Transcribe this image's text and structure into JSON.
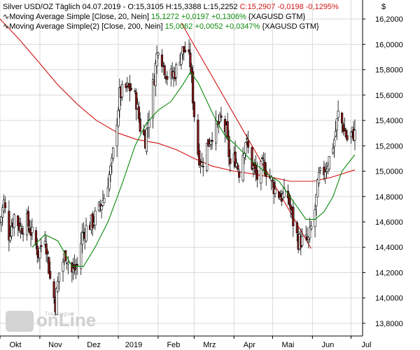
{
  "colors": {
    "background": "#ffffff",
    "grid": "#d9d9d9",
    "candle_up": "#ffffff",
    "candle_down": "#8b1a1a",
    "candle_wick": "#000000",
    "ma20": "#0a8a0a",
    "ma200": "#d21414",
    "trendline": "#d21414",
    "positive": "#0a8a0a",
    "negative": "#d21414",
    "watermark": "#cfcfcf"
  },
  "watermark": {
    "brand": "onLine",
    "sub": "Tradesignal"
  },
  "legend": {
    "line1": {
      "prefix": "Silver USD/OZ Täglich  04.07.2019 - O:15,3105 H:15,3388 L:15,2252 ",
      "change": "C:15,2907 -0,0198 -0,1295%"
    },
    "line2": {
      "icon": "∿",
      "prefix": "Moving Average Simple [Close, 20, Nein] ",
      "change": "15,1272 +0,0197 +0,1306%",
      "suffix": " {XAGUSD GTM}"
    },
    "line3": {
      "icon": "∿",
      "prefix": "Moving Average Simple(2) [Close, 200, Nein] ",
      "change": "15,0062 +0,0052 +0,0347%",
      "suffix": " {XAGUSD GTM}"
    }
  },
  "chart_data": {
    "type": "candlestick",
    "currency_label": "$",
    "ylim": [
      13.7,
      16.35
    ],
    "y_ticks": [
      13.8,
      14.0,
      14.2,
      14.4,
      14.6,
      14.8,
      15.0,
      15.2,
      15.4,
      15.6,
      15.8,
      16.0,
      16.2
    ],
    "y_tick_labels": [
      "13,8000",
      "14,0000",
      "14,2000",
      "14,4000",
      "14,6000",
      "14,8000",
      "15,0000",
      "15,2000",
      "15,4000",
      "15,6000",
      "15,8000",
      "16,0000",
      "16,2000"
    ],
    "x_start": "2018-10-01",
    "x_end": "2019-07-10",
    "x_ticks": [
      {
        "label": "Okt",
        "date": "2018-10-01"
      },
      {
        "label": "Nov",
        "date": "2018-11-01"
      },
      {
        "label": "Dez",
        "date": "2018-12-01"
      },
      {
        "label": "2019",
        "date": "2019-01-01"
      },
      {
        "label": "Feb",
        "date": "2019-02-01"
      },
      {
        "label": "Mrz",
        "date": "2019-03-01"
      },
      {
        "label": "Apr",
        "date": "2019-04-01"
      },
      {
        "label": "Mai",
        "date": "2019-05-01"
      },
      {
        "label": "Jun",
        "date": "2019-06-01"
      },
      {
        "label": "Jul",
        "date": "2019-07-01"
      }
    ],
    "close_anchors": [
      [
        "2018-10-01",
        14.6
      ],
      [
        "2018-10-04",
        14.75
      ],
      [
        "2018-10-08",
        14.5
      ],
      [
        "2018-10-12",
        14.65
      ],
      [
        "2018-10-17",
        14.55
      ],
      [
        "2018-10-22",
        14.6
      ],
      [
        "2018-10-26",
        14.5
      ],
      [
        "2018-10-31",
        14.35
      ],
      [
        "2018-11-05",
        14.5
      ],
      [
        "2018-11-09",
        14.15
      ],
      [
        "2018-11-13",
        13.95
      ],
      [
        "2018-11-16",
        14.2
      ],
      [
        "2018-11-21",
        14.35
      ],
      [
        "2018-11-26",
        14.2
      ],
      [
        "2018-11-30",
        14.25
      ],
      [
        "2018-12-04",
        14.5
      ],
      [
        "2018-12-07",
        14.55
      ],
      [
        "2018-12-12",
        14.6
      ],
      [
        "2018-12-17",
        14.7
      ],
      [
        "2018-12-21",
        14.8
      ],
      [
        "2018-12-27",
        15.05
      ],
      [
        "2019-01-02",
        15.6
      ],
      [
        "2019-01-07",
        15.65
      ],
      [
        "2019-01-11",
        15.65
      ],
      [
        "2019-01-15",
        15.55
      ],
      [
        "2019-01-18",
        15.35
      ],
      [
        "2019-01-22",
        15.25
      ],
      [
        "2019-01-25",
        15.45
      ],
      [
        "2019-01-29",
        15.75
      ],
      [
        "2019-02-01",
        16.0
      ],
      [
        "2019-02-05",
        15.85
      ],
      [
        "2019-02-08",
        15.75
      ],
      [
        "2019-02-12",
        15.75
      ],
      [
        "2019-02-15",
        15.8
      ],
      [
        "2019-02-19",
        15.95
      ],
      [
        "2019-02-22",
        15.95
      ],
      [
        "2019-02-26",
        15.85
      ],
      [
        "2019-03-01",
        15.45
      ],
      [
        "2019-03-04",
        15.15
      ],
      [
        "2019-03-07",
        15.05
      ],
      [
        "2019-03-11",
        15.2
      ],
      [
        "2019-03-15",
        15.3
      ],
      [
        "2019-03-19",
        15.35
      ],
      [
        "2019-03-22",
        15.4
      ],
      [
        "2019-03-26",
        15.3
      ],
      [
        "2019-03-29",
        15.05
      ],
      [
        "2019-04-02",
        15.1
      ],
      [
        "2019-04-05",
        15.0
      ],
      [
        "2019-04-10",
        15.25
      ],
      [
        "2019-04-15",
        15.05
      ],
      [
        "2019-04-19",
        14.95
      ],
      [
        "2019-04-24",
        15.05
      ],
      [
        "2019-04-29",
        14.95
      ],
      [
        "2019-05-03",
        14.85
      ],
      [
        "2019-05-08",
        14.8
      ],
      [
        "2019-05-13",
        14.8
      ],
      [
        "2019-05-17",
        14.6
      ],
      [
        "2019-05-21",
        14.45
      ],
      [
        "2019-05-24",
        14.45
      ],
      [
        "2019-05-29",
        14.45
      ],
      [
        "2019-06-03",
        14.7
      ],
      [
        "2019-06-06",
        14.95
      ],
      [
        "2019-06-10",
        15.0
      ],
      [
        "2019-06-14",
        15.1
      ],
      [
        "2019-06-18",
        15.25
      ],
      [
        "2019-06-21",
        15.45
      ],
      [
        "2019-06-25",
        15.35
      ],
      [
        "2019-06-28",
        15.25
      ],
      [
        "2019-07-02",
        15.3
      ],
      [
        "2019-07-04",
        15.29
      ]
    ],
    "ma20_points": [
      [
        "2018-10-26",
        14.4
      ],
      [
        "2018-11-05",
        14.5
      ],
      [
        "2018-11-15",
        14.45
      ],
      [
        "2018-11-26",
        14.25
      ],
      [
        "2018-12-05",
        14.25
      ],
      [
        "2018-12-14",
        14.4
      ],
      [
        "2018-12-24",
        14.6
      ],
      [
        "2019-01-04",
        14.9
      ],
      [
        "2019-01-14",
        15.2
      ],
      [
        "2019-01-23",
        15.38
      ],
      [
        "2019-02-01",
        15.48
      ],
      [
        "2019-02-11",
        15.55
      ],
      [
        "2019-02-20",
        15.68
      ],
      [
        "2019-02-26",
        15.78
      ],
      [
        "2019-03-04",
        15.7
      ],
      [
        "2019-03-11",
        15.55
      ],
      [
        "2019-03-18",
        15.4
      ],
      [
        "2019-03-25",
        15.28
      ],
      [
        "2019-04-01",
        15.22
      ],
      [
        "2019-04-08",
        15.15
      ],
      [
        "2019-04-15",
        15.08
      ],
      [
        "2019-04-22",
        15.02
      ],
      [
        "2019-04-29",
        14.96
      ],
      [
        "2019-05-06",
        14.92
      ],
      [
        "2019-05-13",
        14.82
      ],
      [
        "2019-05-20",
        14.72
      ],
      [
        "2019-05-27",
        14.62
      ],
      [
        "2019-06-03",
        14.62
      ],
      [
        "2019-06-10",
        14.68
      ],
      [
        "2019-06-17",
        14.8
      ],
      [
        "2019-06-24",
        15.0
      ],
      [
        "2019-07-04",
        15.13
      ]
    ],
    "ma200_points": [
      [
        "2018-10-01",
        16.2
      ],
      [
        "2018-10-15",
        16.05
      ],
      [
        "2018-11-01",
        15.85
      ],
      [
        "2018-11-15",
        15.68
      ],
      [
        "2018-12-01",
        15.52
      ],
      [
        "2018-12-15",
        15.4
      ],
      [
        "2019-01-01",
        15.3
      ],
      [
        "2019-01-15",
        15.25
      ],
      [
        "2019-02-01",
        15.22
      ],
      [
        "2019-02-15",
        15.17
      ],
      [
        "2019-03-01",
        15.1
      ],
      [
        "2019-03-15",
        15.04
      ],
      [
        "2019-04-01",
        15.0
      ],
      [
        "2019-04-15",
        14.98
      ],
      [
        "2019-05-01",
        14.95
      ],
      [
        "2019-05-15",
        14.92
      ],
      [
        "2019-06-01",
        14.92
      ],
      [
        "2019-06-15",
        14.95
      ],
      [
        "2019-07-04",
        15.01
      ]
    ],
    "trendline": [
      [
        "2019-02-19",
        16.17
      ],
      [
        "2019-05-31",
        14.39
      ]
    ],
    "last_close": 15.2907
  }
}
